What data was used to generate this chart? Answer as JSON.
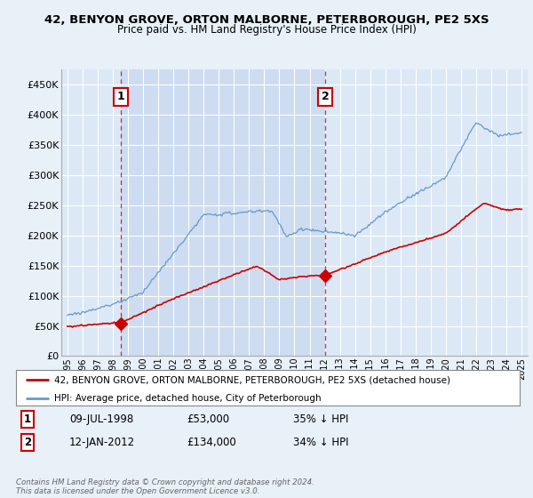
{
  "title": "42, BENYON GROVE, ORTON MALBORNE, PETERBOROUGH, PE2 5XS",
  "subtitle": "Price paid vs. HM Land Registry's House Price Index (HPI)",
  "ylabel_ticks": [
    "£0",
    "£50K",
    "£100K",
    "£150K",
    "£200K",
    "£250K",
    "£300K",
    "£350K",
    "£400K",
    "£450K"
  ],
  "ytick_vals": [
    0,
    50000,
    100000,
    150000,
    200000,
    250000,
    300000,
    350000,
    400000,
    450000
  ],
  "ylim": [
    0,
    475000
  ],
  "xlim_start": 1994.6,
  "xlim_end": 2025.4,
  "bg_color": "#e8f0f8",
  "plot_bg_color": "#dce8f5",
  "shaded_bg_color": "#c8d8ee",
  "grid_color": "#ffffff",
  "hpi_color": "#6699cc",
  "price_color": "#cc0000",
  "sale1_date": 1998.52,
  "sale1_price": 53000,
  "sale2_date": 2012.04,
  "sale2_price": 134000,
  "legend_label1": "42, BENYON GROVE, ORTON MALBORNE, PETERBOROUGH, PE2 5XS (detached house)",
  "legend_label2": "HPI: Average price, detached house, City of Peterborough",
  "annotation1_label": "1",
  "annotation1_date": "09-JUL-1998",
  "annotation1_price": "£53,000",
  "annotation1_hpi": "35% ↓ HPI",
  "annotation2_label": "2",
  "annotation2_date": "12-JAN-2012",
  "annotation2_price": "£134,000",
  "annotation2_hpi": "34% ↓ HPI",
  "footer": "Contains HM Land Registry data © Crown copyright and database right 2024.\nThis data is licensed under the Open Government Licence v3.0."
}
